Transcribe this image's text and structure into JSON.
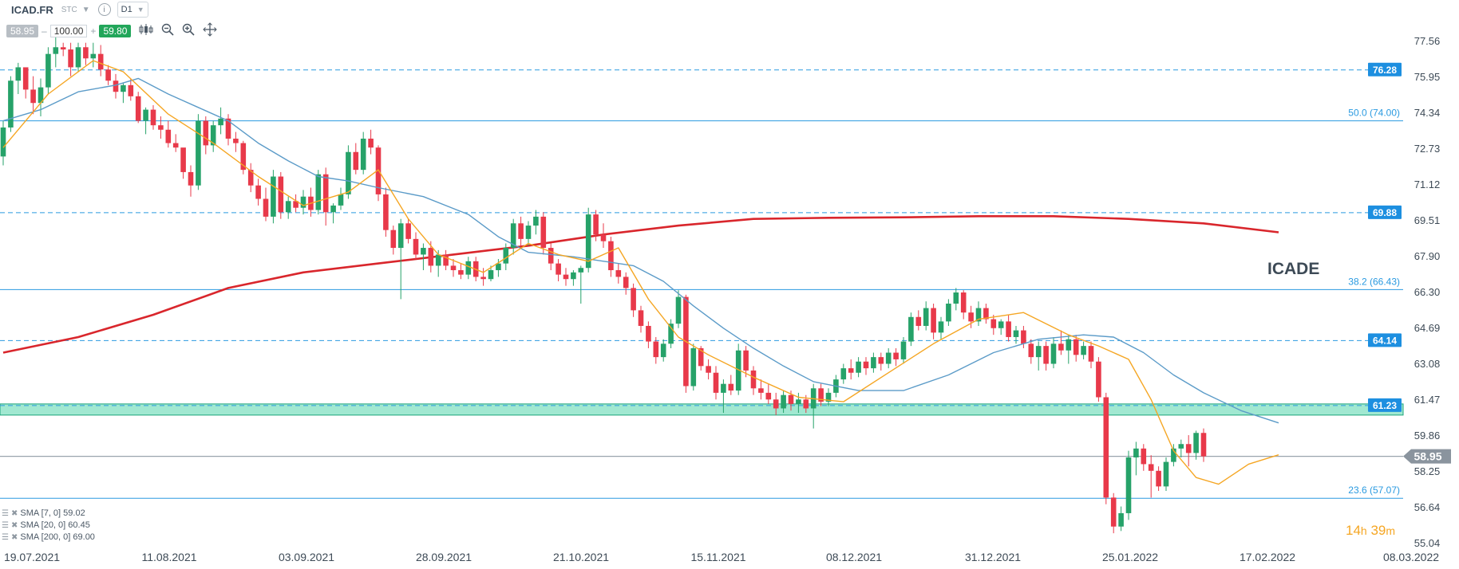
{
  "header": {
    "symbol": "ICAD.FR",
    "exchange": "STC",
    "timeframe": "D1",
    "info_icon": "i"
  },
  "trade": {
    "sell_price": "58.95",
    "minus": "–",
    "quantity": "100.00",
    "plus": "+",
    "buy_price": "59.80"
  },
  "tools": [
    "chart-type-icon",
    "zoom-out-icon",
    "zoom-in-icon",
    "crosshair-move-icon"
  ],
  "indicators": [
    {
      "label": "SMA [7, 0] 59.02",
      "color": "#f5a623"
    },
    {
      "label": "SMA [20, 0] 60.45",
      "color": "#5b9bc8"
    },
    {
      "label": "SMA [200, 0] 69.00",
      "color": "#d9262c"
    }
  ],
  "watermark": "ICADE",
  "timer": {
    "hours": "14",
    "h": "h",
    "minutes": "39",
    "m": "m"
  },
  "chart_data": {
    "type": "candlestick",
    "title": "ICADE",
    "y_ticks": [
      "77.56",
      "75.95",
      "74.34",
      "72.73",
      "71.12",
      "69.51",
      "67.90",
      "66.30",
      "64.69",
      "63.08",
      "61.47",
      "59.86",
      "58.25",
      "56.64",
      "55.04"
    ],
    "ylim": [
      55.04,
      77.56
    ],
    "x_ticks": [
      "19.07.2021",
      "11.08.2021",
      "03.09.2021",
      "28.09.2021",
      "21.10.2021",
      "15.11.2021",
      "08.12.2021",
      "31.12.2021",
      "25.01.2022",
      "17.02.2022",
      "08.03.2022"
    ],
    "levels": [
      {
        "value": 76.28,
        "label": "76.28",
        "style": "dashed",
        "color": "#2a9ae0",
        "tag": true
      },
      {
        "value": 74.0,
        "label": "50.0 (74.00)",
        "style": "solid",
        "color": "#2a9ae0",
        "tag": false
      },
      {
        "value": 69.88,
        "label": "69.88",
        "style": "dashed",
        "color": "#2a9ae0",
        "tag": true
      },
      {
        "value": 66.43,
        "label": "38.2 (66.43)",
        "style": "solid",
        "color": "#2a9ae0",
        "tag": false
      },
      {
        "value": 64.14,
        "label": "64.14",
        "style": "dashed",
        "color": "#2a9ae0",
        "tag": true
      },
      {
        "value": 61.23,
        "label": "61.23",
        "style": "dashed",
        "color": "#2a9ae0",
        "tag": true
      },
      {
        "value": 57.07,
        "label": "23.6 (57.07)",
        "style": "solid",
        "color": "#2a9ae0",
        "tag": false
      }
    ],
    "zone": {
      "from": 60.8,
      "to": 61.3,
      "color": "#2ecc9a"
    },
    "current_price": {
      "value": 58.95,
      "label": "58.95"
    },
    "up_color": "#26a269",
    "down_color": "#e8394a",
    "candles": [
      [
        72.4,
        74.0,
        72.0,
        73.7
      ],
      [
        73.7,
        76.0,
        73.5,
        75.8
      ],
      [
        75.8,
        76.6,
        75.2,
        76.4
      ],
      [
        76.4,
        76.2,
        75.0,
        75.4
      ],
      [
        75.4,
        76.0,
        74.3,
        74.8
      ],
      [
        74.8,
        75.9,
        74.2,
        75.5
      ],
      [
        75.5,
        77.3,
        75.2,
        77.0
      ],
      [
        77.0,
        77.8,
        76.4,
        77.3
      ],
      [
        77.3,
        77.5,
        76.9,
        77.2
      ],
      [
        77.2,
        77.5,
        76.0,
        76.4
      ],
      [
        76.4,
        77.5,
        76.2,
        77.3
      ],
      [
        77.3,
        77.5,
        76.5,
        76.8
      ],
      [
        76.8,
        77.5,
        76.4,
        77.0
      ],
      [
        77.0,
        77.4,
        76.0,
        76.3
      ],
      [
        76.3,
        76.5,
        75.6,
        75.8
      ],
      [
        75.8,
        76.1,
        75.0,
        75.3
      ],
      [
        75.3,
        75.7,
        74.8,
        75.6
      ],
      [
        75.6,
        75.9,
        74.9,
        75.1
      ],
      [
        75.1,
        75.3,
        73.9,
        74.0
      ],
      [
        74.0,
        74.6,
        73.4,
        74.5
      ],
      [
        74.5,
        74.7,
        73.6,
        73.8
      ],
      [
        73.8,
        74.2,
        73.2,
        73.6
      ],
      [
        73.6,
        74.0,
        72.8,
        73.0
      ],
      [
        73.0,
        73.4,
        72.6,
        72.8
      ],
      [
        72.8,
        72.6,
        71.4,
        71.7
      ],
      [
        71.7,
        72.0,
        70.6,
        71.1
      ],
      [
        71.1,
        74.3,
        70.9,
        74.0
      ],
      [
        74.0,
        74.2,
        72.5,
        72.9
      ],
      [
        72.9,
        74.0,
        72.6,
        73.8
      ],
      [
        73.8,
        74.6,
        73.4,
        74.1
      ],
      [
        74.1,
        74.3,
        72.9,
        73.2
      ],
      [
        73.2,
        73.5,
        72.6,
        73.0
      ],
      [
        73.0,
        73.1,
        71.6,
        71.8
      ],
      [
        71.8,
        72.1,
        70.8,
        71.1
      ],
      [
        71.1,
        71.4,
        70.2,
        70.5
      ],
      [
        70.5,
        71.0,
        69.5,
        69.7
      ],
      [
        69.7,
        71.8,
        69.4,
        71.5
      ],
      [
        71.5,
        71.7,
        69.6,
        69.9
      ],
      [
        69.9,
        70.6,
        69.6,
        70.4
      ],
      [
        70.4,
        70.7,
        69.9,
        70.1
      ],
      [
        70.1,
        70.9,
        69.8,
        70.6
      ],
      [
        70.6,
        71.0,
        69.7,
        70.0
      ],
      [
        70.0,
        71.8,
        69.8,
        71.6
      ],
      [
        71.6,
        71.9,
        69.3,
        69.9
      ],
      [
        69.9,
        70.3,
        69.4,
        70.2
      ],
      [
        70.2,
        71.0,
        70.0,
        70.7
      ],
      [
        70.7,
        72.9,
        70.5,
        72.6
      ],
      [
        72.6,
        73.0,
        71.6,
        71.8
      ],
      [
        71.8,
        73.5,
        71.6,
        73.2
      ],
      [
        73.2,
        73.6,
        72.5,
        72.8
      ],
      [
        72.8,
        72.9,
        70.4,
        70.7
      ],
      [
        70.7,
        71.0,
        68.8,
        69.1
      ],
      [
        69.1,
        69.3,
        68.0,
        68.3
      ],
      [
        68.3,
        69.6,
        66.0,
        69.4
      ],
      [
        69.4,
        69.6,
        68.5,
        68.7
      ],
      [
        68.7,
        69.0,
        67.8,
        68.0
      ],
      [
        68.0,
        68.5,
        67.3,
        68.3
      ],
      [
        68.3,
        68.6,
        67.2,
        67.5
      ],
      [
        67.5,
        68.2,
        67.0,
        68.0
      ],
      [
        68.0,
        68.2,
        67.3,
        67.5
      ],
      [
        67.5,
        67.8,
        67.0,
        67.3
      ],
      [
        67.3,
        67.6,
        66.9,
        67.1
      ],
      [
        67.1,
        67.9,
        66.9,
        67.7
      ],
      [
        67.7,
        67.9,
        66.8,
        67.0
      ],
      [
        67.0,
        67.4,
        66.6,
        66.9
      ],
      [
        66.9,
        67.5,
        66.8,
        67.3
      ],
      [
        67.3,
        67.8,
        67.0,
        67.6
      ],
      [
        67.6,
        68.5,
        67.3,
        68.3
      ],
      [
        68.3,
        69.6,
        68.0,
        69.4
      ],
      [
        69.4,
        69.7,
        68.4,
        68.7
      ],
      [
        68.7,
        69.5,
        68.4,
        69.3
      ],
      [
        69.3,
        70.0,
        68.9,
        69.7
      ],
      [
        69.7,
        69.9,
        68.0,
        68.3
      ],
      [
        68.3,
        68.5,
        67.3,
        67.6
      ],
      [
        67.6,
        67.8,
        66.8,
        67.1
      ],
      [
        67.1,
        67.4,
        66.6,
        66.9
      ],
      [
        66.9,
        67.3,
        66.6,
        67.2
      ],
      [
        67.2,
        67.5,
        65.8,
        67.4
      ],
      [
        67.4,
        70.1,
        67.2,
        69.8
      ],
      [
        69.8,
        70.0,
        68.6,
        68.9
      ],
      [
        68.9,
        69.4,
        68.3,
        68.6
      ],
      [
        68.6,
        68.8,
        67.0,
        67.3
      ],
      [
        67.3,
        67.6,
        66.7,
        67.0
      ],
      [
        67.0,
        67.2,
        66.2,
        66.5
      ],
      [
        66.5,
        66.7,
        65.2,
        65.5
      ],
      [
        65.5,
        65.7,
        64.5,
        64.8
      ],
      [
        64.8,
        65.0,
        63.8,
        64.1
      ],
      [
        64.1,
        64.3,
        63.1,
        63.4
      ],
      [
        63.4,
        64.2,
        63.2,
        64.0
      ],
      [
        64.0,
        65.1,
        63.8,
        64.9
      ],
      [
        64.9,
        66.4,
        64.7,
        66.1
      ],
      [
        66.1,
        66.2,
        61.8,
        62.1
      ],
      [
        62.1,
        64.0,
        61.9,
        63.8
      ],
      [
        63.8,
        63.9,
        62.8,
        63.0
      ],
      [
        63.0,
        63.3,
        62.4,
        62.7
      ],
      [
        62.7,
        63.0,
        61.5,
        61.8
      ],
      [
        61.8,
        62.4,
        60.9,
        62.2
      ],
      [
        62.2,
        62.6,
        61.7,
        61.9
      ],
      [
        61.9,
        64.0,
        61.7,
        63.7
      ],
      [
        63.7,
        63.9,
        62.5,
        62.8
      ],
      [
        62.8,
        63.0,
        61.7,
        62.0
      ],
      [
        62.0,
        62.4,
        61.5,
        61.8
      ],
      [
        61.8,
        62.2,
        61.3,
        61.5
      ],
      [
        61.5,
        61.8,
        60.8,
        61.1
      ],
      [
        61.1,
        61.9,
        60.9,
        61.7
      ],
      [
        61.7,
        61.9,
        61.0,
        61.3
      ],
      [
        61.3,
        61.8,
        60.9,
        61.5
      ],
      [
        61.5,
        61.7,
        60.9,
        61.1
      ],
      [
        61.1,
        62.2,
        60.2,
        62.0
      ],
      [
        62.0,
        62.2,
        61.2,
        61.4
      ],
      [
        61.4,
        62.0,
        61.2,
        61.8
      ],
      [
        61.8,
        62.6,
        61.6,
        62.4
      ],
      [
        62.4,
        63.1,
        62.2,
        62.9
      ],
      [
        62.9,
        63.3,
        62.4,
        62.7
      ],
      [
        62.7,
        63.4,
        62.5,
        63.2
      ],
      [
        63.2,
        63.4,
        62.6,
        62.9
      ],
      [
        62.9,
        63.6,
        62.7,
        63.4
      ],
      [
        63.4,
        63.6,
        62.8,
        63.1
      ],
      [
        63.1,
        63.8,
        62.9,
        63.6
      ],
      [
        63.6,
        63.8,
        63.0,
        63.3
      ],
      [
        63.3,
        64.3,
        63.1,
        64.1
      ],
      [
        64.1,
        65.4,
        63.9,
        65.2
      ],
      [
        65.2,
        65.5,
        64.6,
        64.8
      ],
      [
        64.8,
        65.9,
        64.6,
        65.6
      ],
      [
        65.6,
        65.8,
        64.2,
        64.5
      ],
      [
        64.5,
        65.2,
        64.2,
        65.0
      ],
      [
        65.0,
        66.0,
        64.8,
        65.8
      ],
      [
        65.8,
        66.5,
        65.5,
        66.3
      ],
      [
        66.3,
        66.4,
        65.1,
        65.4
      ],
      [
        65.4,
        65.7,
        64.7,
        65.0
      ],
      [
        65.0,
        65.9,
        64.8,
        65.6
      ],
      [
        65.6,
        65.8,
        64.9,
        65.1
      ],
      [
        65.1,
        65.3,
        64.4,
        64.7
      ],
      [
        64.7,
        65.1,
        64.4,
        65.0
      ],
      [
        65.0,
        65.3,
        64.1,
        64.3
      ],
      [
        64.3,
        64.8,
        64.0,
        64.6
      ],
      [
        64.6,
        64.8,
        63.8,
        64.0
      ],
      [
        64.0,
        64.2,
        63.1,
        63.4
      ],
      [
        63.4,
        64.1,
        62.8,
        63.9
      ],
      [
        63.9,
        64.1,
        62.8,
        63.1
      ],
      [
        63.1,
        64.3,
        62.9,
        64.0
      ],
      [
        64.0,
        64.6,
        63.5,
        63.7
      ],
      [
        63.7,
        64.4,
        63.1,
        64.2
      ],
      [
        64.2,
        64.4,
        63.2,
        63.5
      ],
      [
        63.5,
        64.1,
        63.3,
        63.9
      ],
      [
        63.9,
        64.1,
        62.9,
        63.2
      ],
      [
        63.2,
        63.4,
        61.4,
        61.6
      ],
      [
        61.6,
        61.8,
        56.8,
        57.1
      ],
      [
        57.1,
        57.3,
        55.5,
        55.8
      ],
      [
        55.8,
        56.7,
        55.6,
        56.4
      ],
      [
        56.4,
        59.2,
        56.1,
        58.9
      ],
      [
        58.9,
        59.6,
        58.1,
        59.3
      ],
      [
        59.3,
        59.5,
        58.3,
        58.6
      ],
      [
        58.6,
        59.0,
        57.1,
        58.3
      ],
      [
        58.3,
        58.5,
        57.4,
        57.6
      ],
      [
        57.6,
        58.9,
        57.4,
        58.7
      ],
      [
        58.7,
        59.5,
        58.5,
        59.3
      ],
      [
        59.3,
        59.7,
        58.9,
        59.5
      ],
      [
        59.5,
        59.9,
        58.5,
        59.1
      ],
      [
        59.1,
        60.1,
        58.8,
        60.0
      ],
      [
        60.0,
        60.2,
        58.7,
        58.95
      ]
    ],
    "sma7": [
      [
        0,
        72.8
      ],
      [
        6,
        75.2
      ],
      [
        12,
        76.7
      ],
      [
        16,
        76.2
      ],
      [
        22,
        74.3
      ],
      [
        28,
        73.0
      ],
      [
        34,
        71.5
      ],
      [
        40,
        70.2
      ],
      [
        46,
        70.8
      ],
      [
        50,
        71.8
      ],
      [
        54,
        69.6
      ],
      [
        58,
        68.0
      ],
      [
        64,
        67.2
      ],
      [
        70,
        68.5
      ],
      [
        74,
        68.0
      ],
      [
        78,
        67.7
      ],
      [
        82,
        68.3
      ],
      [
        86,
        66.0
      ],
      [
        90,
        64.3
      ],
      [
        94,
        63.5
      ],
      [
        100,
        62.5
      ],
      [
        106,
        61.6
      ],
      [
        112,
        61.4
      ],
      [
        118,
        62.7
      ],
      [
        124,
        64.0
      ],
      [
        130,
        65.1
      ],
      [
        136,
        65.4
      ],
      [
        142,
        64.4
      ],
      [
        146,
        63.9
      ],
      [
        150,
        63.3
      ],
      [
        153,
        61.5
      ],
      [
        156,
        59.2
      ],
      [
        159,
        58.0
      ],
      [
        162,
        57.7
      ],
      [
        166,
        58.6
      ],
      [
        170,
        59.02
      ]
    ],
    "sma20": [
      [
        0,
        74.0
      ],
      [
        5,
        74.5
      ],
      [
        10,
        75.3
      ],
      [
        15,
        75.6
      ],
      [
        18,
        75.9
      ],
      [
        22,
        75.2
      ],
      [
        26,
        74.6
      ],
      [
        30,
        74.0
      ],
      [
        34,
        73.0
      ],
      [
        38,
        72.2
      ],
      [
        42,
        71.5
      ],
      [
        46,
        71.3
      ],
      [
        50,
        71.0
      ],
      [
        56,
        70.6
      ],
      [
        62,
        69.8
      ],
      [
        66,
        68.8
      ],
      [
        70,
        68.1
      ],
      [
        76,
        67.9
      ],
      [
        80,
        67.7
      ],
      [
        84,
        67.5
      ],
      [
        88,
        66.8
      ],
      [
        92,
        65.7
      ],
      [
        96,
        64.7
      ],
      [
        100,
        63.8
      ],
      [
        104,
        63.0
      ],
      [
        108,
        62.3
      ],
      [
        114,
        61.9
      ],
      [
        120,
        61.9
      ],
      [
        126,
        62.6
      ],
      [
        132,
        63.6
      ],
      [
        138,
        64.2
      ],
      [
        144,
        64.4
      ],
      [
        148,
        64.3
      ],
      [
        152,
        63.6
      ],
      [
        156,
        62.6
      ],
      [
        160,
        61.8
      ],
      [
        165,
        61.0
      ],
      [
        170,
        60.45
      ]
    ],
    "sma200": [
      [
        0,
        63.6
      ],
      [
        10,
        64.3
      ],
      [
        20,
        65.3
      ],
      [
        30,
        66.5
      ],
      [
        40,
        67.2
      ],
      [
        50,
        67.6
      ],
      [
        60,
        68.0
      ],
      [
        70,
        68.4
      ],
      [
        80,
        68.9
      ],
      [
        90,
        69.3
      ],
      [
        100,
        69.6
      ],
      [
        110,
        69.65
      ],
      [
        120,
        69.67
      ],
      [
        130,
        69.72
      ],
      [
        140,
        69.72
      ],
      [
        150,
        69.6
      ],
      [
        160,
        69.4
      ],
      [
        170,
        69.0
      ]
    ]
  }
}
